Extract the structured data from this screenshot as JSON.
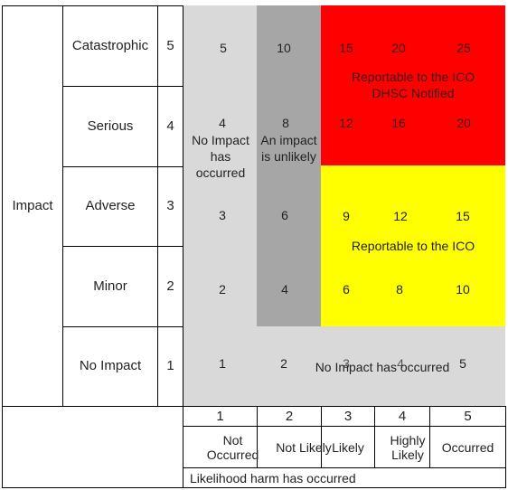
{
  "colors": {
    "no_impact_region": "#d9d9d9",
    "unlikely_region": "#a6a6a6",
    "reportable_dhsc": "#ff0000",
    "reportable_ico": "#ffff00",
    "grid_line": "#000000",
    "text": "#222222",
    "text_on_red": "#3a1a1a"
  },
  "impact": {
    "label": "Impact",
    "rows": [
      {
        "name": "Catastrophic",
        "score": "5"
      },
      {
        "name": "Serious",
        "score": "4"
      },
      {
        "name": "Adverse",
        "score": "3"
      },
      {
        "name": "Minor",
        "score": "2"
      },
      {
        "name": "No Impact",
        "score": "1"
      }
    ]
  },
  "likelihood": {
    "caption": "Likelihood harm has occurred",
    "columns": [
      {
        "score": "1",
        "label": "Not Occurred"
      },
      {
        "score": "2",
        "label": "Not Likely"
      },
      {
        "score": "3",
        "label": "Likely"
      },
      {
        "score": "4",
        "label": "Highly Likely"
      },
      {
        "score": "5",
        "label": "Occurred"
      }
    ]
  },
  "matrix": {
    "values": [
      [
        "5",
        "10",
        "15",
        "20",
        "25"
      ],
      [
        "4",
        "8",
        "12",
        "16",
        "20"
      ],
      [
        "3",
        "6",
        "9",
        "12",
        "15"
      ],
      [
        "2",
        "4",
        "6",
        "8",
        "10"
      ],
      [
        "1",
        "2",
        "3",
        "4",
        "5"
      ]
    ]
  },
  "zones": {
    "no_impact_col": "No Impact has occurred",
    "unlikely_col": "An impact is unlikely",
    "reportable_dhsc_line1": "Reportable to the ICO",
    "reportable_dhsc_line2": "DHSC Notified",
    "reportable_ico": "Reportable to the ICO",
    "no_impact_row": "No Impact has occurred"
  }
}
